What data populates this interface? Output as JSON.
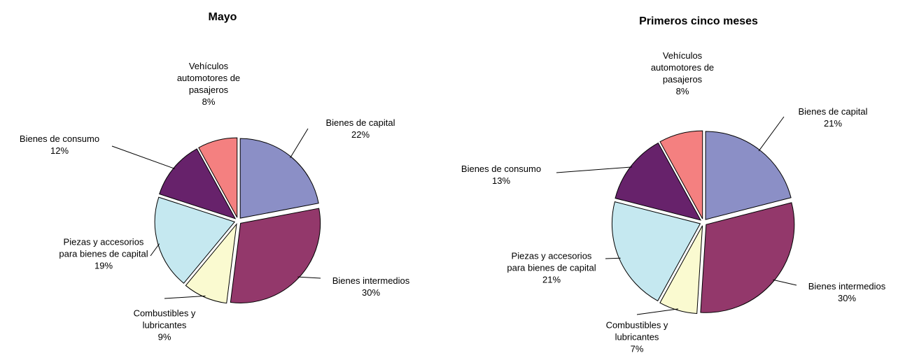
{
  "chart_data": [
    {
      "type": "pie",
      "title": "Mayo",
      "categories": [
        "Bienes de capital",
        "Bienes intermedios",
        "Combustibles y lubricantes",
        "Piezas y accesorios para bienes de capital",
        "Bienes de consumo",
        "Vehículos automotores de pasajeros"
      ],
      "values": [
        22,
        30,
        9,
        19,
        12,
        8
      ],
      "value_labels": [
        "22%",
        "30%",
        "9%",
        "19%",
        "12%",
        "8%"
      ],
      "colors": [
        "#8b8fc6",
        "#93386b",
        "#fafad0",
        "#c5e8f0",
        "#67226b",
        "#f48080"
      ]
    },
    {
      "type": "pie",
      "title": "Primeros cinco meses",
      "categories": [
        "Bienes de capital",
        "Bienes intermedios",
        "Combustibles y lubricantes",
        "Piezas y accesorios para bienes de capital",
        "Bienes de consumo",
        "Vehículos automotores de pasajeros"
      ],
      "values": [
        21,
        30,
        7,
        21,
        13,
        8
      ],
      "value_labels": [
        "21%",
        "30%",
        "7%",
        "21%",
        "13%",
        "8%"
      ],
      "colors": [
        "#8b8fc6",
        "#93386b",
        "#fafad0",
        "#c5e8f0",
        "#67226b",
        "#f48080"
      ]
    }
  ]
}
